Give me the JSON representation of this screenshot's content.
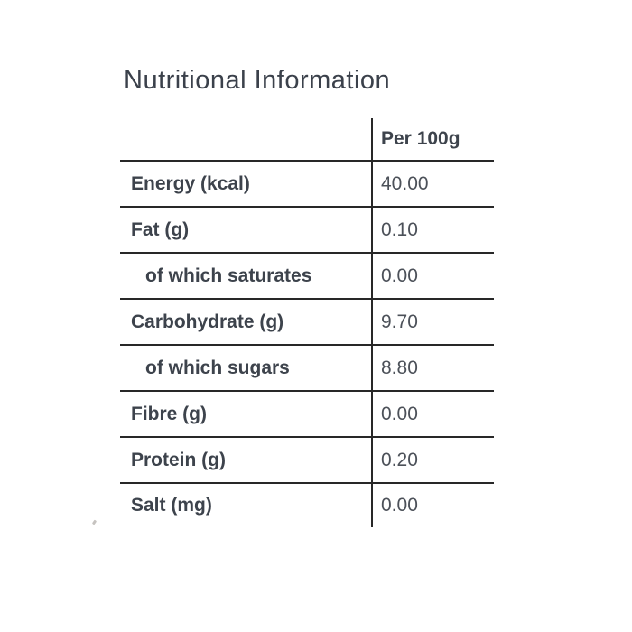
{
  "page": {
    "title": "Nutritional Information"
  },
  "table": {
    "header": {
      "label": "",
      "value": "Per 100g"
    },
    "rows": [
      {
        "label": "Energy (kcal)",
        "value": "40.00"
      },
      {
        "label": "Fat (g)",
        "value": "0.10"
      },
      {
        "label": "of which saturates",
        "value": "0.00"
      },
      {
        "label": "Carbohydrate (g)",
        "value": "9.70"
      },
      {
        "label": "of which sugars",
        "value": "8.80"
      },
      {
        "label": "Fibre (g)",
        "value": "0.00"
      },
      {
        "label": "Protein (g)",
        "value": "0.20"
      },
      {
        "label": "Salt (mg)",
        "value": "0.00"
      }
    ]
  },
  "colors": {
    "line": "#282828",
    "title_text": "#3b414b",
    "label_text": "#3d434c",
    "value_text": "#4c5159"
  }
}
